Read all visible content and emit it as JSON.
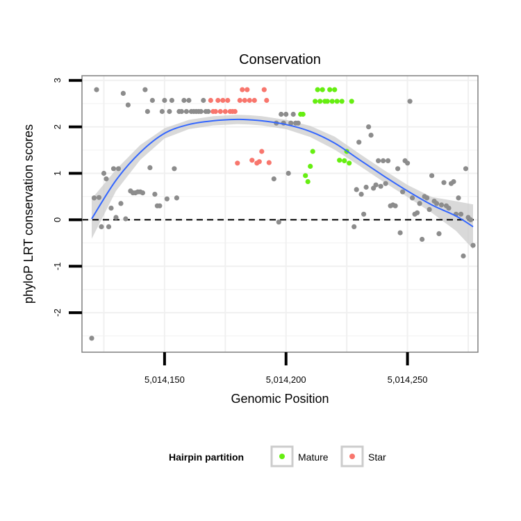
{
  "chart_data": {
    "type": "scatter",
    "title": "Conservation",
    "xlabel": "Genomic Position",
    "ylabel": "phyloP LRT conservation scores",
    "xlim": [
      5014116,
      5014279
    ],
    "ylim": [
      -2.85,
      3.1
    ],
    "x_ticks": [
      {
        "value": 5014150,
        "label": "5,014,150"
      },
      {
        "value": 5014200,
        "label": "5,014,200"
      },
      {
        "value": 5014250,
        "label": "5,014,250"
      }
    ],
    "y_ticks": [
      {
        "value": 3,
        "label": "3"
      },
      {
        "value": 2,
        "label": "2"
      },
      {
        "value": 1,
        "label": "1"
      },
      {
        "value": 0,
        "label": "0"
      },
      {
        "value": -1,
        "label": "-1"
      },
      {
        "value": -2,
        "label": "-2"
      }
    ],
    "reference_line": {
      "y": 0,
      "style": "dashed"
    },
    "grid": true,
    "legend": {
      "title": "Hairpin partition",
      "position": "bottom",
      "entries": [
        {
          "label": "Mature",
          "color": "#66ee11"
        },
        {
          "label": "Star",
          "color": "#f8766d"
        }
      ]
    },
    "colors": {
      "other": "#8c8c8c",
      "mature": "#66ee11",
      "star": "#f8766d",
      "smooth": "#3366ff",
      "band": "#cccccc"
    },
    "series": [
      {
        "key": "other",
        "points": [
          [
            5014120,
            -2.55
          ],
          [
            5014121,
            0.47
          ],
          [
            5014122,
            2.8
          ],
          [
            5014123,
            0.48
          ],
          [
            5014124,
            -0.15
          ],
          [
            5014125,
            1.0
          ],
          [
            5014126,
            0.88
          ],
          [
            5014127,
            -0.15
          ],
          [
            5014128,
            0.25
          ],
          [
            5014129,
            1.1
          ],
          [
            5014130,
            0.05
          ],
          [
            5014131,
            1.1
          ],
          [
            5014132,
            0.35
          ],
          [
            5014133,
            2.72
          ],
          [
            5014134,
            0.02
          ],
          [
            5014135,
            2.47
          ],
          [
            5014136,
            0.62
          ],
          [
            5014137,
            0.58
          ],
          [
            5014138,
            0.58
          ],
          [
            5014139,
            0.6
          ],
          [
            5014140,
            0.6
          ],
          [
            5014141,
            0.58
          ],
          [
            5014142,
            2.8
          ],
          [
            5014143,
            2.33
          ],
          [
            5014144,
            1.12
          ],
          [
            5014145,
            2.57
          ],
          [
            5014146,
            0.55
          ],
          [
            5014147,
            0.3
          ],
          [
            5014148,
            0.3
          ],
          [
            5014149,
            2.33
          ],
          [
            5014150,
            2.57
          ],
          [
            5014151,
            0.45
          ],
          [
            5014152,
            2.33
          ],
          [
            5014153,
            2.57
          ],
          [
            5014154,
            1.1
          ],
          [
            5014155,
            0.47
          ],
          [
            5014156,
            2.33
          ],
          [
            5014157,
            2.33
          ],
          [
            5014158,
            2.57
          ],
          [
            5014159,
            2.33
          ],
          [
            5014160,
            2.57
          ],
          [
            5014161,
            2.33
          ],
          [
            5014162,
            2.33
          ],
          [
            5014163,
            2.33
          ],
          [
            5014164,
            2.33
          ],
          [
            5014165,
            2.33
          ],
          [
            5014166,
            2.57
          ],
          [
            5014167,
            2.33
          ],
          [
            5014168,
            2.33
          ],
          [
            5014195,
            0.88
          ],
          [
            5014196,
            2.08
          ],
          [
            5014197,
            -0.05
          ],
          [
            5014198,
            2.27
          ],
          [
            5014199,
            2.08
          ],
          [
            5014200,
            2.27
          ],
          [
            5014201,
            1.0
          ],
          [
            5014202,
            2.08
          ],
          [
            5014203,
            2.27
          ],
          [
            5014204,
            2.08
          ],
          [
            5014205,
            2.08
          ],
          [
            5014228,
            -0.15
          ],
          [
            5014229,
            0.65
          ],
          [
            5014230,
            1.67
          ],
          [
            5014231,
            0.55
          ],
          [
            5014232,
            0.12
          ],
          [
            5014233,
            0.7
          ],
          [
            5014234,
            2.0
          ],
          [
            5014235,
            1.82
          ],
          [
            5014236,
            0.68
          ],
          [
            5014237,
            0.75
          ],
          [
            5014238,
            1.27
          ],
          [
            5014239,
            0.72
          ],
          [
            5014240,
            1.27
          ],
          [
            5014241,
            0.78
          ],
          [
            5014242,
            1.27
          ],
          [
            5014243,
            0.3
          ],
          [
            5014244,
            0.32
          ],
          [
            5014245,
            0.3
          ],
          [
            5014246,
            1.1
          ],
          [
            5014247,
            -0.28
          ],
          [
            5014248,
            0.6
          ],
          [
            5014249,
            1.27
          ],
          [
            5014250,
            1.22
          ],
          [
            5014251,
            2.55
          ],
          [
            5014252,
            0.47
          ],
          [
            5014253,
            0.12
          ],
          [
            5014254,
            0.15
          ],
          [
            5014255,
            0.35
          ],
          [
            5014256,
            -0.42
          ],
          [
            5014257,
            0.5
          ],
          [
            5014258,
            0.47
          ],
          [
            5014259,
            0.22
          ],
          [
            5014260,
            0.95
          ],
          [
            5014261,
            0.4
          ],
          [
            5014262,
            0.35
          ],
          [
            5014263,
            -0.3
          ],
          [
            5014264,
            0.32
          ],
          [
            5014265,
            0.8
          ],
          [
            5014266,
            0.3
          ],
          [
            5014267,
            0.25
          ],
          [
            5014268,
            0.78
          ],
          [
            5014269,
            0.82
          ],
          [
            5014270,
            0.12
          ],
          [
            5014271,
            0.47
          ],
          [
            5014272,
            0.12
          ],
          [
            5014273,
            -0.78
          ],
          [
            5014274,
            1.1
          ],
          [
            5014275,
            0.05
          ],
          [
            5014276,
            0.0
          ],
          [
            5014277,
            -0.55
          ]
        ]
      },
      {
        "key": "star",
        "points": [
          [
            5014169,
            2.57
          ],
          [
            5014170,
            2.33
          ],
          [
            5014171,
            2.33
          ],
          [
            5014172,
            2.57
          ],
          [
            5014173,
            2.33
          ],
          [
            5014174,
            2.57
          ],
          [
            5014175,
            2.33
          ],
          [
            5014176,
            2.57
          ],
          [
            5014177,
            2.33
          ],
          [
            5014178,
            2.33
          ],
          [
            5014179,
            2.33
          ],
          [
            5014180,
            1.22
          ],
          [
            5014181,
            2.57
          ],
          [
            5014182,
            2.8
          ],
          [
            5014183,
            2.57
          ],
          [
            5014184,
            2.8
          ],
          [
            5014185,
            2.57
          ],
          [
            5014186,
            1.28
          ],
          [
            5014187,
            2.57
          ],
          [
            5014188,
            1.22
          ],
          [
            5014189,
            1.25
          ],
          [
            5014190,
            1.47
          ],
          [
            5014191,
            2.8
          ],
          [
            5014192,
            2.57
          ],
          [
            5014193,
            1.23
          ]
        ]
      },
      {
        "key": "mature",
        "points": [
          [
            5014206,
            2.27
          ],
          [
            5014207,
            2.27
          ],
          [
            5014208,
            0.95
          ],
          [
            5014209,
            0.82
          ],
          [
            5014210,
            1.15
          ],
          [
            5014211,
            1.47
          ],
          [
            5014212,
            2.55
          ],
          [
            5014213,
            2.8
          ],
          [
            5014214,
            2.55
          ],
          [
            5014215,
            2.8
          ],
          [
            5014216,
            2.55
          ],
          [
            5014217,
            2.55
          ],
          [
            5014218,
            2.8
          ],
          [
            5014219,
            2.55
          ],
          [
            5014220,
            2.8
          ],
          [
            5014221,
            2.55
          ],
          [
            5014222,
            1.28
          ],
          [
            5014223,
            2.55
          ],
          [
            5014224,
            1.27
          ],
          [
            5014225,
            1.47
          ],
          [
            5014226,
            1.22
          ],
          [
            5014227,
            2.55
          ]
        ]
      }
    ],
    "smooth": {
      "x": [
        5014120,
        5014130,
        5014140,
        5014150,
        5014160,
        5014170,
        5014180,
        5014185,
        5014190,
        5014200,
        5014210,
        5014220,
        5014230,
        5014240,
        5014250,
        5014260,
        5014270,
        5014277
      ],
      "y": [
        0.02,
        0.85,
        1.45,
        1.86,
        2.05,
        2.13,
        2.16,
        2.15,
        2.13,
        2.05,
        1.9,
        1.65,
        1.3,
        0.95,
        0.62,
        0.32,
        0.08,
        -0.15
      ],
      "upper": [
        0.45,
        1.08,
        1.61,
        1.97,
        2.15,
        2.23,
        2.26,
        2.25,
        2.23,
        2.15,
        2.02,
        1.79,
        1.43,
        1.08,
        0.75,
        0.49,
        0.4,
        0.33
      ],
      "lower": [
        -0.41,
        0.62,
        1.29,
        1.75,
        1.95,
        2.03,
        2.06,
        2.05,
        2.03,
        1.95,
        1.78,
        1.51,
        1.17,
        0.82,
        0.49,
        0.15,
        -0.24,
        -0.63
      ]
    }
  }
}
